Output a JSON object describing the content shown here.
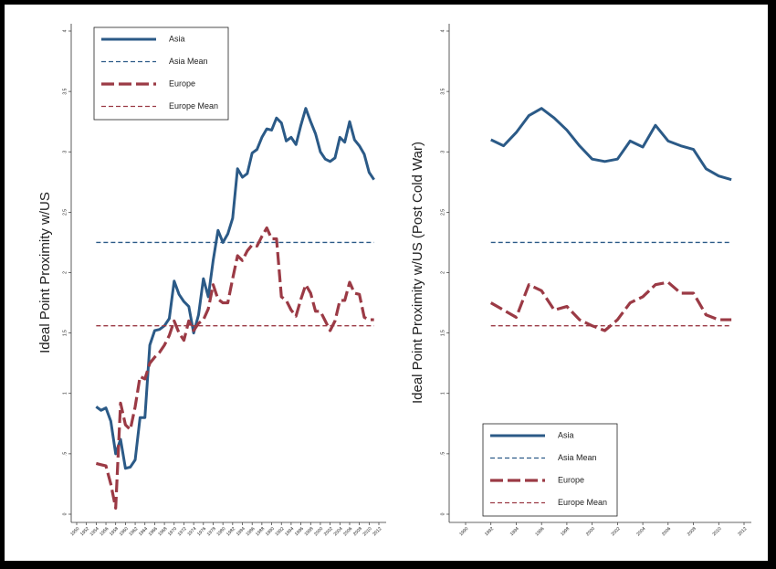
{
  "chart_data": [
    {
      "type": "line",
      "y_label": "Ideal Point Proximity w/US",
      "x": [
        1954,
        1955,
        1956,
        1957,
        1958,
        1959,
        1960,
        1961,
        1962,
        1963,
        1964,
        1965,
        1966,
        1967,
        1968,
        1969,
        1970,
        1971,
        1972,
        1973,
        1974,
        1975,
        1976,
        1977,
        1978,
        1979,
        1980,
        1981,
        1982,
        1983,
        1984,
        1985,
        1986,
        1987,
        1988,
        1989,
        1990,
        1991,
        1992,
        1993,
        1994,
        1995,
        1996,
        1997,
        1998,
        1999,
        2000,
        2001,
        2002,
        2003,
        2004,
        2005,
        2006,
        2007,
        2008,
        2009,
        2010,
        2011
      ],
      "xlim": [
        1950,
        2012
      ],
      "xticks": [
        1950,
        1952,
        1954,
        1956,
        1958,
        1960,
        1962,
        1964,
        1966,
        1968,
        1970,
        1972,
        1974,
        1976,
        1978,
        1980,
        1982,
        1984,
        1986,
        1988,
        1990,
        1992,
        1994,
        1996,
        1998,
        2000,
        2002,
        2004,
        2006,
        2008,
        2010,
        2012
      ],
      "ylim": [
        0,
        4
      ],
      "yticks": [
        0,
        {
          "value": 0.5,
          "label": ".5"
        },
        1,
        1.5,
        2,
        2.5,
        3,
        3.5,
        4
      ],
      "legend": "top-left",
      "series": [
        {
          "name": "Asia",
          "color": "#2b5a87",
          "style": "solid",
          "values": [
            0.89,
            0.86,
            0.88,
            0.77,
            0.5,
            0.62,
            0.38,
            0.39,
            0.45,
            0.8,
            0.8,
            1.4,
            1.52,
            1.53,
            1.56,
            1.62,
            1.93,
            1.82,
            1.76,
            1.72,
            1.5,
            1.65,
            1.95,
            1.8,
            2.1,
            2.35,
            2.25,
            2.32,
            2.45,
            2.86,
            2.79,
            2.82,
            2.99,
            3.02,
            3.12,
            3.19,
            3.18,
            3.28,
            3.24,
            3.09,
            3.12,
            3.06,
            3.22,
            3.36,
            3.25,
            3.15,
            3.0,
            2.94,
            2.92,
            2.95,
            3.12,
            3.08,
            3.25,
            3.1,
            3.05,
            2.98,
            2.83,
            2.77
          ]
        },
        {
          "name": "Asia Mean",
          "color": "#2b5a87",
          "style": "mean",
          "value": 2.25
        },
        {
          "name": "Europe",
          "color": "#9b3a45",
          "style": "long-dash",
          "values": [
            0.42,
            0.41,
            0.4,
            0.25,
            0.05,
            0.92,
            0.74,
            0.7,
            0.89,
            1.14,
            1.12,
            1.25,
            1.3,
            1.34,
            1.4,
            1.48,
            1.6,
            1.5,
            1.44,
            1.6,
            1.52,
            1.58,
            1.61,
            1.7,
            1.9,
            1.78,
            1.75,
            1.75,
            1.95,
            2.14,
            2.1,
            2.18,
            2.23,
            2.22,
            2.3,
            2.37,
            2.28,
            2.28,
            1.8,
            1.77,
            1.69,
            1.64,
            1.78,
            1.9,
            1.83,
            1.68,
            1.68,
            1.6,
            1.52,
            1.6,
            1.77,
            1.77,
            1.92,
            1.83,
            1.82,
            1.63,
            1.61,
            1.61
          ]
        },
        {
          "name": "Europe Mean",
          "color": "#9b3a45",
          "style": "mean",
          "value": 1.56
        }
      ]
    },
    {
      "type": "line",
      "y_label": "Ideal Point Proximity w/US (Post Cold War)",
      "x": [
        1992,
        1993,
        1994,
        1995,
        1996,
        1997,
        1998,
        1999,
        2000,
        2001,
        2002,
        2003,
        2004,
        2005,
        2006,
        2007,
        2008,
        2009,
        2010,
        2011
      ],
      "xlim": [
        1990,
        2012
      ],
      "xticks": [
        1990,
        1992,
        1994,
        1996,
        1998,
        2000,
        2002,
        2004,
        2006,
        2008,
        2010,
        2012
      ],
      "ylim": [
        0,
        4
      ],
      "yticks": [
        0,
        {
          "value": 0.5,
          "label": ".5"
        },
        1,
        1.5,
        2,
        2.5,
        3,
        3.5,
        4
      ],
      "legend": "bottom-left",
      "series": [
        {
          "name": "Asia",
          "color": "#2b5a87",
          "style": "solid",
          "values": [
            3.1,
            3.05,
            3.16,
            3.3,
            3.36,
            3.28,
            3.18,
            3.05,
            2.94,
            2.92,
            2.94,
            3.09,
            3.04,
            3.22,
            3.09,
            3.05,
            3.02,
            2.86,
            2.8,
            2.77
          ]
        },
        {
          "name": "Asia Mean",
          "color": "#2b5a87",
          "style": "mean",
          "value": 2.25
        },
        {
          "name": "Europe",
          "color": "#9b3a45",
          "style": "long-dash",
          "values": [
            1.75,
            1.69,
            1.63,
            1.9,
            1.85,
            1.69,
            1.72,
            1.61,
            1.56,
            1.52,
            1.61,
            1.75,
            1.8,
            1.9,
            1.92,
            1.83,
            1.83,
            1.65,
            1.61,
            1.61
          ]
        },
        {
          "name": "Europe Mean",
          "color": "#9b3a45",
          "style": "mean",
          "value": 1.56
        }
      ]
    }
  ]
}
